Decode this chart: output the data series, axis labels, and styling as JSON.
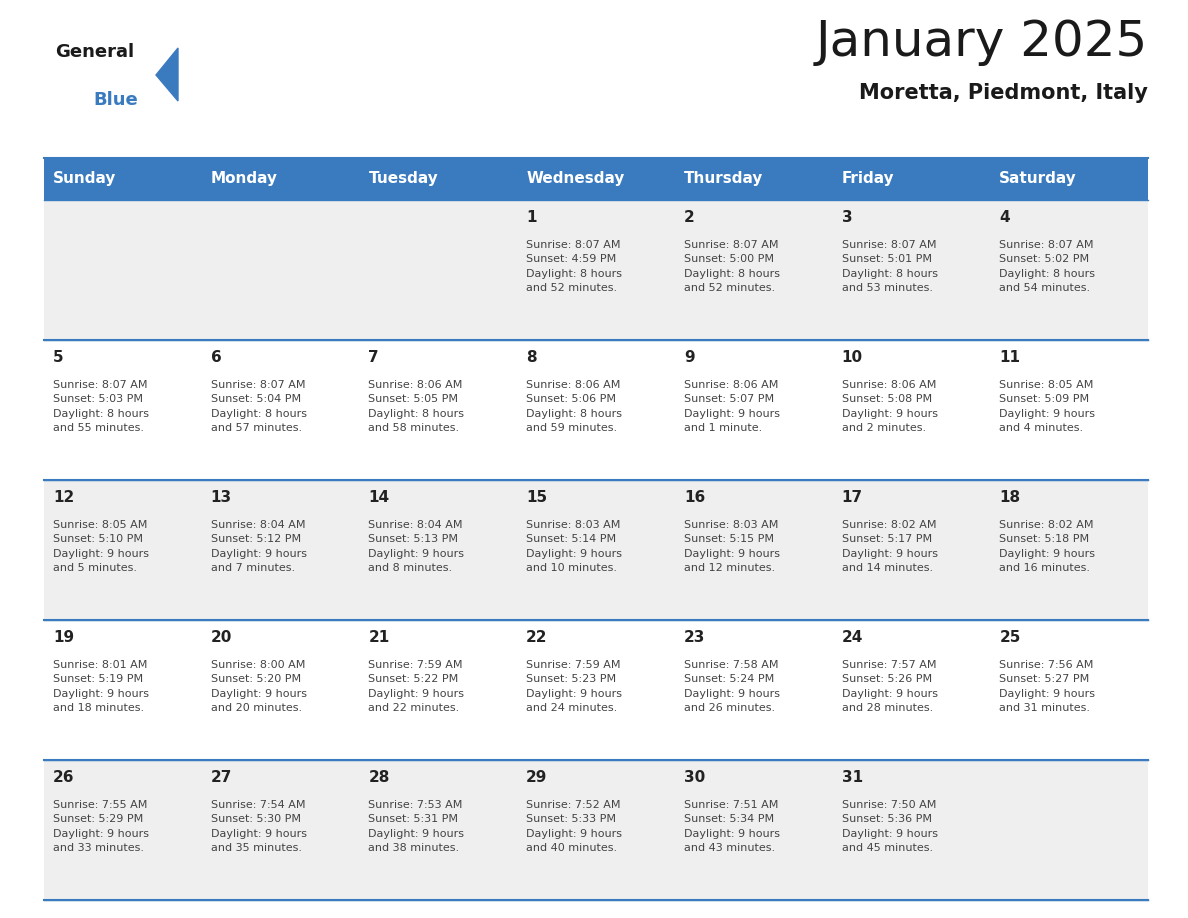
{
  "title": "January 2025",
  "subtitle": "Moretta, Piedmont, Italy",
  "header_color": "#3a7bbf",
  "header_text_color": "#ffffff",
  "weekdays": [
    "Sunday",
    "Monday",
    "Tuesday",
    "Wednesday",
    "Thursday",
    "Friday",
    "Saturday"
  ],
  "background_color": "#ffffff",
  "cell_bg_odd": "#efefef",
  "cell_bg_even": "#ffffff",
  "day_number_color": "#222222",
  "info_text_color": "#444444",
  "grid_line_color": "#3a7bbf",
  "title_fontsize": 36,
  "subtitle_fontsize": 15,
  "header_fontsize": 11,
  "day_fontsize": 11,
  "info_fontsize": 8,
  "calendar_data": [
    [
      {
        "day": "",
        "info": ""
      },
      {
        "day": "",
        "info": ""
      },
      {
        "day": "",
        "info": ""
      },
      {
        "day": "1",
        "info": "Sunrise: 8:07 AM\nSunset: 4:59 PM\nDaylight: 8 hours\nand 52 minutes."
      },
      {
        "day": "2",
        "info": "Sunrise: 8:07 AM\nSunset: 5:00 PM\nDaylight: 8 hours\nand 52 minutes."
      },
      {
        "day": "3",
        "info": "Sunrise: 8:07 AM\nSunset: 5:01 PM\nDaylight: 8 hours\nand 53 minutes."
      },
      {
        "day": "4",
        "info": "Sunrise: 8:07 AM\nSunset: 5:02 PM\nDaylight: 8 hours\nand 54 minutes."
      }
    ],
    [
      {
        "day": "5",
        "info": "Sunrise: 8:07 AM\nSunset: 5:03 PM\nDaylight: 8 hours\nand 55 minutes."
      },
      {
        "day": "6",
        "info": "Sunrise: 8:07 AM\nSunset: 5:04 PM\nDaylight: 8 hours\nand 57 minutes."
      },
      {
        "day": "7",
        "info": "Sunrise: 8:06 AM\nSunset: 5:05 PM\nDaylight: 8 hours\nand 58 minutes."
      },
      {
        "day": "8",
        "info": "Sunrise: 8:06 AM\nSunset: 5:06 PM\nDaylight: 8 hours\nand 59 minutes."
      },
      {
        "day": "9",
        "info": "Sunrise: 8:06 AM\nSunset: 5:07 PM\nDaylight: 9 hours\nand 1 minute."
      },
      {
        "day": "10",
        "info": "Sunrise: 8:06 AM\nSunset: 5:08 PM\nDaylight: 9 hours\nand 2 minutes."
      },
      {
        "day": "11",
        "info": "Sunrise: 8:05 AM\nSunset: 5:09 PM\nDaylight: 9 hours\nand 4 minutes."
      }
    ],
    [
      {
        "day": "12",
        "info": "Sunrise: 8:05 AM\nSunset: 5:10 PM\nDaylight: 9 hours\nand 5 minutes."
      },
      {
        "day": "13",
        "info": "Sunrise: 8:04 AM\nSunset: 5:12 PM\nDaylight: 9 hours\nand 7 minutes."
      },
      {
        "day": "14",
        "info": "Sunrise: 8:04 AM\nSunset: 5:13 PM\nDaylight: 9 hours\nand 8 minutes."
      },
      {
        "day": "15",
        "info": "Sunrise: 8:03 AM\nSunset: 5:14 PM\nDaylight: 9 hours\nand 10 minutes."
      },
      {
        "day": "16",
        "info": "Sunrise: 8:03 AM\nSunset: 5:15 PM\nDaylight: 9 hours\nand 12 minutes."
      },
      {
        "day": "17",
        "info": "Sunrise: 8:02 AM\nSunset: 5:17 PM\nDaylight: 9 hours\nand 14 minutes."
      },
      {
        "day": "18",
        "info": "Sunrise: 8:02 AM\nSunset: 5:18 PM\nDaylight: 9 hours\nand 16 minutes."
      }
    ],
    [
      {
        "day": "19",
        "info": "Sunrise: 8:01 AM\nSunset: 5:19 PM\nDaylight: 9 hours\nand 18 minutes."
      },
      {
        "day": "20",
        "info": "Sunrise: 8:00 AM\nSunset: 5:20 PM\nDaylight: 9 hours\nand 20 minutes."
      },
      {
        "day": "21",
        "info": "Sunrise: 7:59 AM\nSunset: 5:22 PM\nDaylight: 9 hours\nand 22 minutes."
      },
      {
        "day": "22",
        "info": "Sunrise: 7:59 AM\nSunset: 5:23 PM\nDaylight: 9 hours\nand 24 minutes."
      },
      {
        "day": "23",
        "info": "Sunrise: 7:58 AM\nSunset: 5:24 PM\nDaylight: 9 hours\nand 26 minutes."
      },
      {
        "day": "24",
        "info": "Sunrise: 7:57 AM\nSunset: 5:26 PM\nDaylight: 9 hours\nand 28 minutes."
      },
      {
        "day": "25",
        "info": "Sunrise: 7:56 AM\nSunset: 5:27 PM\nDaylight: 9 hours\nand 31 minutes."
      }
    ],
    [
      {
        "day": "26",
        "info": "Sunrise: 7:55 AM\nSunset: 5:29 PM\nDaylight: 9 hours\nand 33 minutes."
      },
      {
        "day": "27",
        "info": "Sunrise: 7:54 AM\nSunset: 5:30 PM\nDaylight: 9 hours\nand 35 minutes."
      },
      {
        "day": "28",
        "info": "Sunrise: 7:53 AM\nSunset: 5:31 PM\nDaylight: 9 hours\nand 38 minutes."
      },
      {
        "day": "29",
        "info": "Sunrise: 7:52 AM\nSunset: 5:33 PM\nDaylight: 9 hours\nand 40 minutes."
      },
      {
        "day": "30",
        "info": "Sunrise: 7:51 AM\nSunset: 5:34 PM\nDaylight: 9 hours\nand 43 minutes."
      },
      {
        "day": "31",
        "info": "Sunrise: 7:50 AM\nSunset: 5:36 PM\nDaylight: 9 hours\nand 45 minutes."
      },
      {
        "day": "",
        "info": ""
      }
    ]
  ]
}
